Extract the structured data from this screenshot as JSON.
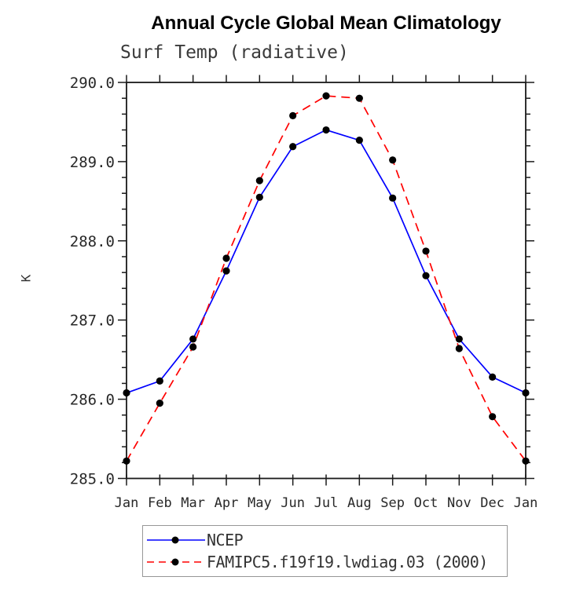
{
  "title": "Annual Cycle Global Mean Climatology",
  "subtitle": "Surf Temp (radiative)",
  "ylabel": "K",
  "chart_data": {
    "type": "line",
    "title": "Annual Cycle Global Mean Climatology",
    "subtitle": "Surf Temp (radiative)",
    "xlabel": "",
    "ylabel": "K",
    "categories": [
      "Jan",
      "Feb",
      "Mar",
      "Apr",
      "May",
      "Jun",
      "Jul",
      "Aug",
      "Sep",
      "Oct",
      "Nov",
      "Dec",
      "Jan"
    ],
    "ylim": [
      285.0,
      290.0
    ],
    "y_tick_labels": [
      "285.0",
      "286.0",
      "287.0",
      "288.0",
      "289.0",
      "290.0"
    ],
    "y_minor_step": 0.2,
    "grid": false,
    "legend_position": "bottom",
    "axis_color": "#1a1a1a",
    "marker_color": "#000000",
    "series": [
      {
        "name": "NCEP",
        "color": "#0000ff",
        "style": "solid",
        "marker": "circle",
        "values": [
          286.08,
          286.23,
          286.76,
          287.62,
          288.55,
          289.19,
          289.4,
          289.27,
          288.54,
          287.56,
          286.76,
          286.28,
          286.08
        ]
      },
      {
        "name": "FAMIPC5.f19f19.lwdiag.03 (2000)",
        "color": "#ff0000",
        "style": "dashed",
        "marker": "circle",
        "values": [
          285.22,
          285.95,
          286.66,
          287.78,
          288.76,
          289.58,
          289.83,
          289.8,
          289.02,
          287.87,
          286.64,
          285.78,
          285.22
        ]
      }
    ]
  }
}
